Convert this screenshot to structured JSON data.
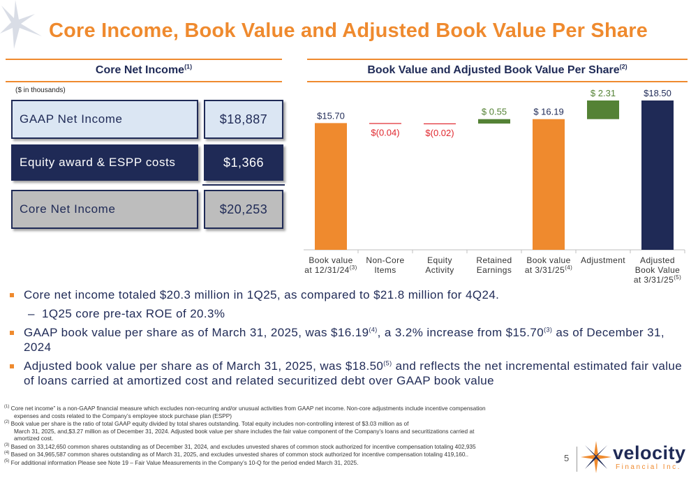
{
  "title": "Core Income, Book Value and Adjusted Book Value Per Share",
  "left_section": {
    "heading": "Core Net Income",
    "heading_note": "(1)",
    "units": "($ in thousands)",
    "rows": [
      {
        "label": "GAAP Net Income",
        "value": "$18,887"
      },
      {
        "label": "Equity award & ESPP costs",
        "value": "$1,366"
      },
      {
        "label": "Core Net Income",
        "value": "$20,253"
      }
    ]
  },
  "right_section": {
    "heading": "Book Value and Adjusted Book Value Per Share",
    "heading_note": "(2)"
  },
  "chart_data": {
    "type": "bar",
    "subtype": "waterfall",
    "categories": [
      {
        "line1": "Book value",
        "line2": "at 12/31/24",
        "note": "(3)"
      },
      {
        "line1": "Non-Core",
        "line2": "Items",
        "note": ""
      },
      {
        "line1": "Equity",
        "line2": "Activity",
        "note": ""
      },
      {
        "line1": "Retained",
        "line2": "Earnings",
        "note": ""
      },
      {
        "line1": "Book value",
        "line2": "at 3/31/25",
        "note": "(4)"
      },
      {
        "line1": "Adjustment",
        "line2": "",
        "note": ""
      },
      {
        "line1": "Adjusted",
        "line2": "Book Value",
        "line3": "at 3/31/25",
        "note": "(5)"
      }
    ],
    "values": [
      15.7,
      -0.04,
      -0.02,
      0.55,
      16.19,
      2.31,
      18.5
    ],
    "kinds": [
      "total",
      "delta",
      "delta",
      "delta",
      "total",
      "delta",
      "total"
    ],
    "data_labels": [
      "$15.70",
      "$(0.04)",
      "$(0.02)",
      "$ 0.55",
      "$ 16.19",
      "$ 2.31",
      "$18.50"
    ],
    "colors": {
      "orange": "#ef8a2e",
      "red": "#e0262d",
      "green": "#548235",
      "navy": "#1f2a56",
      "axis": "#bfbfbf"
    },
    "bar_colors": [
      "#ef8a2e",
      "#e0262d",
      "#e0262d",
      "#548235",
      "#ef8a2e",
      "#548235",
      "#1f2a56"
    ],
    "label_colors": [
      "#1f2a56",
      "#e0262d",
      "#e0262d",
      "#548235",
      "#1f2a56",
      "#548235",
      "#1f2a56"
    ],
    "ylim": [
      0,
      18.5
    ],
    "grid": false,
    "legend": "none"
  },
  "bullets": [
    {
      "level": 1,
      "parts": [
        {
          "t": "Core net income totaled $20.3 million in 1Q25, as compared to $21.8 million for 4Q24."
        }
      ]
    },
    {
      "level": 2,
      "parts": [
        {
          "t": "1Q25 core pre-tax ROE of 20.3%"
        }
      ]
    },
    {
      "level": 1,
      "parts": [
        {
          "t": "GAAP book value per share as of March 31, 2025, was $16.19"
        },
        {
          "t": "(4)",
          "sup": true
        },
        {
          "t": ", a 3.2% increase from $15.70"
        },
        {
          "t": "(3)",
          "sup": true
        },
        {
          "t": " as of December 31, 2024"
        }
      ]
    },
    {
      "level": 1,
      "parts": [
        {
          "t": "Adjusted book value per share as of March 31, 2025, was $18.50"
        },
        {
          "t": "(5)",
          "sup": true
        },
        {
          "t": " and reflects the net incremental estimated fair value of loans carried at amortized cost and related securitized debt over GAAP book value"
        }
      ]
    }
  ],
  "footnotes": [
    {
      "num": "(1)",
      "lines": [
        "Core net income” is a non-GAAP financial measure which excludes non-recurring and/or unusual activities from GAAP net income. Non-core adjustments include incentive compensation",
        "expenses and costs related to the Company’s employee stock purchase plan (ESPP)"
      ]
    },
    {
      "num": "(2)",
      "lines": [
        "Book value per share is the ratio of total GAAP equity divided by total shares outstanding. Total equity includes non-controlling interest of $3.03 million as of",
        "March 31, 2025, and,$3.27 million as of December 31, 2024. Adjusted book value per share includes the fair value component of the Company’s loans and securitizations carried at",
        "amortized cost."
      ]
    },
    {
      "num": "(3)",
      "lines": [
        "Based on 33,142,650 common shares outstanding as of December 31, 2024, and excludes unvested shares of common stock authorized for incentive compensation totaling 402,935"
      ]
    },
    {
      "num": "(4)",
      "lines": [
        "Based on 34,965,587 common shares outstanding as of March 31, 2025, and excludes unvested shares of common stock authorized for incentive compensation totaling 419,160.."
      ]
    },
    {
      "num": "(5)",
      "lines": [
        "For additional information Please see Note 19 – Fair Value Measurements in the Company’s 10-Q for the period ended March 31, 2025."
      ]
    }
  ],
  "page_number": "5",
  "logo": {
    "word": "velocity",
    "subtitle": "Financial Inc."
  }
}
